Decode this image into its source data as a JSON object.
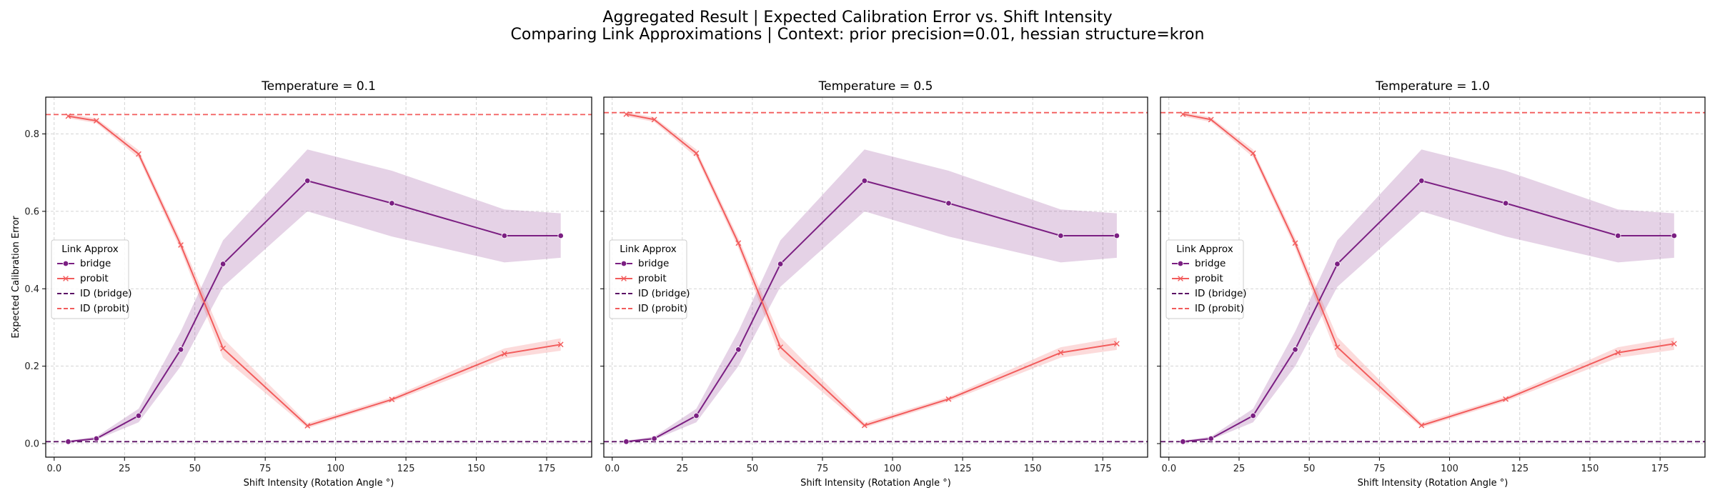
{
  "figure": {
    "title_line1": "Aggregated Result | Expected Calibration Error vs. Shift Intensity",
    "title_line2": "Comparing Link Approximations | Context: prior precision=0.01, hessian structure=kron"
  },
  "colors": {
    "bridge": "#7b1f82",
    "probit": "#f25c5c",
    "id_bridge": "#5c1266",
    "id_probit": "#f25c5c"
  },
  "chart_data": [
    {
      "type": "line",
      "title": "Temperature = 0.1",
      "xlabel": "Shift Intensity (Rotation Angle °)",
      "ylabel": "Expected Calibration Error",
      "xlim": [
        -3,
        191
      ],
      "ylim": [
        -0.035,
        0.895
      ],
      "xticks": [
        0,
        25,
        50,
        75,
        100,
        125,
        150,
        175
      ],
      "yticks": [
        0.0,
        0.2,
        0.4,
        0.6,
        0.8
      ],
      "grid": true,
      "legend": {
        "title": "Link Approx",
        "position": "center-left",
        "entries": [
          "bridge",
          "probit",
          "ID (bridge)",
          "ID (probit)"
        ]
      },
      "x": [
        5,
        15,
        30,
        45,
        60,
        90,
        120,
        160,
        180
      ],
      "series": [
        {
          "name": "bridge",
          "marker": "circle",
          "values": [
            0.005,
            0.013,
            0.072,
            0.243,
            0.464,
            0.679,
            0.621,
            0.537,
            0.537
          ],
          "ci_low": [
            0.003,
            0.01,
            0.055,
            0.2,
            0.405,
            0.6,
            0.535,
            0.468,
            0.48
          ],
          "ci_high": [
            0.008,
            0.018,
            0.09,
            0.29,
            0.525,
            0.76,
            0.705,
            0.605,
            0.595
          ]
        },
        {
          "name": "probit",
          "marker": "x",
          "values": [
            0.846,
            0.834,
            0.748,
            0.513,
            0.246,
            0.046,
            0.114,
            0.232,
            0.256
          ],
          "ci_low": [
            0.84,
            0.828,
            0.738,
            0.5,
            0.222,
            0.04,
            0.108,
            0.22,
            0.24
          ],
          "ci_high": [
            0.852,
            0.84,
            0.758,
            0.526,
            0.272,
            0.053,
            0.12,
            0.246,
            0.272
          ]
        },
        {
          "name": "ID (bridge)",
          "type": "hline",
          "value": 0.005
        },
        {
          "name": "ID (probit)",
          "type": "hline",
          "value": 0.85
        }
      ]
    },
    {
      "type": "line",
      "title": "Temperature = 0.5",
      "xlabel": "Shift Intensity (Rotation Angle °)",
      "ylabel": "",
      "xlim": [
        -3,
        191
      ],
      "ylim": [
        -0.035,
        0.895
      ],
      "xticks": [
        0,
        25,
        50,
        75,
        100,
        125,
        150,
        175
      ],
      "yticks": [
        0.0,
        0.2,
        0.4,
        0.6,
        0.8
      ],
      "grid": true,
      "legend": {
        "title": "Link Approx",
        "position": "center-left",
        "entries": [
          "bridge",
          "probit",
          "ID (bridge)",
          "ID (probit)"
        ]
      },
      "x": [
        5,
        15,
        30,
        45,
        60,
        90,
        120,
        160,
        180
      ],
      "series": [
        {
          "name": "bridge",
          "marker": "circle",
          "values": [
            0.005,
            0.013,
            0.072,
            0.243,
            0.464,
            0.679,
            0.621,
            0.537,
            0.537
          ],
          "ci_low": [
            0.003,
            0.01,
            0.055,
            0.2,
            0.405,
            0.6,
            0.535,
            0.468,
            0.48
          ],
          "ci_high": [
            0.008,
            0.018,
            0.09,
            0.29,
            0.525,
            0.76,
            0.705,
            0.605,
            0.595
          ]
        },
        {
          "name": "probit",
          "marker": "x",
          "values": [
            0.851,
            0.837,
            0.75,
            0.518,
            0.249,
            0.047,
            0.115,
            0.235,
            0.258
          ],
          "ci_low": [
            0.845,
            0.831,
            0.74,
            0.505,
            0.225,
            0.041,
            0.109,
            0.222,
            0.242
          ],
          "ci_high": [
            0.857,
            0.843,
            0.76,
            0.531,
            0.275,
            0.054,
            0.121,
            0.249,
            0.274
          ]
        },
        {
          "name": "ID (bridge)",
          "type": "hline",
          "value": 0.005
        },
        {
          "name": "ID (probit)",
          "type": "hline",
          "value": 0.855
        }
      ]
    },
    {
      "type": "line",
      "title": "Temperature = 1.0",
      "xlabel": "Shift Intensity (Rotation Angle °)",
      "ylabel": "",
      "xlim": [
        -3,
        191
      ],
      "ylim": [
        -0.035,
        0.895
      ],
      "xticks": [
        0,
        25,
        50,
        75,
        100,
        125,
        150,
        175
      ],
      "yticks": [
        0.0,
        0.2,
        0.4,
        0.6,
        0.8
      ],
      "grid": true,
      "legend": {
        "title": "Link Approx",
        "position": "center-left",
        "entries": [
          "bridge",
          "probit",
          "ID (bridge)",
          "ID (probit)"
        ]
      },
      "x": [
        5,
        15,
        30,
        45,
        60,
        90,
        120,
        160,
        180
      ],
      "series": [
        {
          "name": "bridge",
          "marker": "circle",
          "values": [
            0.005,
            0.013,
            0.072,
            0.243,
            0.464,
            0.679,
            0.621,
            0.537,
            0.537
          ],
          "ci_low": [
            0.003,
            0.01,
            0.055,
            0.2,
            0.405,
            0.6,
            0.535,
            0.468,
            0.48
          ],
          "ci_high": [
            0.008,
            0.018,
            0.09,
            0.29,
            0.525,
            0.76,
            0.705,
            0.605,
            0.595
          ]
        },
        {
          "name": "probit",
          "marker": "x",
          "values": [
            0.851,
            0.837,
            0.75,
            0.518,
            0.249,
            0.047,
            0.115,
            0.235,
            0.258
          ],
          "ci_low": [
            0.845,
            0.831,
            0.74,
            0.505,
            0.225,
            0.041,
            0.109,
            0.222,
            0.242
          ],
          "ci_high": [
            0.857,
            0.843,
            0.76,
            0.531,
            0.275,
            0.054,
            0.121,
            0.249,
            0.274
          ]
        },
        {
          "name": "ID (bridge)",
          "type": "hline",
          "value": 0.005
        },
        {
          "name": "ID (probit)",
          "type": "hline",
          "value": 0.855
        }
      ]
    }
  ]
}
